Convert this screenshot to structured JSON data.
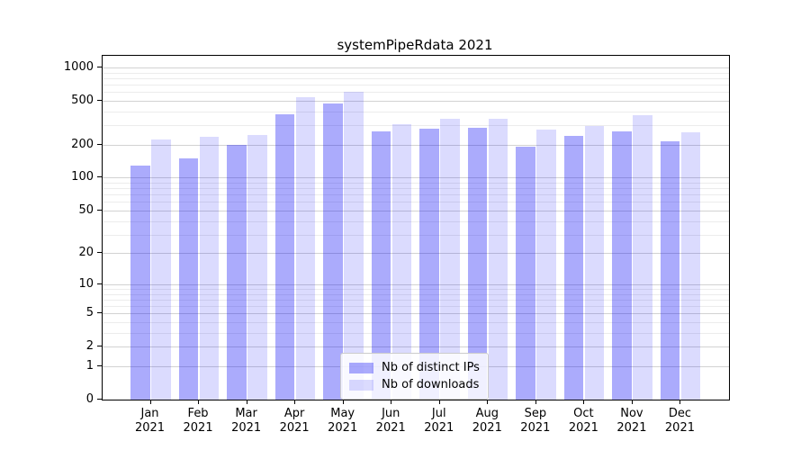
{
  "title": "systemPipeRdata 2021",
  "chart_data": {
    "type": "bar",
    "title": "systemPipeRdata 2021",
    "categories": [
      "Jan 2021",
      "Feb 2021",
      "Mar 2021",
      "Apr 2021",
      "May 2021",
      "Jun 2021",
      "Jul 2021",
      "Aug 2021",
      "Sep 2021",
      "Oct 2021",
      "Nov 2021",
      "Dec 2021"
    ],
    "series": [
      {
        "name": "Nb of distinct IPs",
        "color": "rgba(10,10,245,0.34)",
        "color_hex_on_white": "#abacf8",
        "values": [
          130,
          150,
          200,
          375,
          470,
          265,
          280,
          282,
          190,
          240,
          265,
          215
        ]
      },
      {
        "name": "Nb of downloads",
        "color": "rgba(10,10,245,0.145)",
        "color_hex_on_white": "#dcdcf9",
        "values": [
          222,
          237,
          243,
          535,
          605,
          305,
          345,
          342,
          272,
          297,
          368,
          258
        ]
      }
    ],
    "xlabel": "",
    "ylabel": "",
    "y_scale": "log1p",
    "y_ticks": [
      1000,
      500,
      200,
      100,
      50,
      20,
      10,
      5,
      2,
      1,
      0
    ],
    "y_minor_ticks": [
      3,
      4,
      6,
      7,
      8,
      9,
      30,
      40,
      60,
      70,
      80,
      90,
      300,
      400,
      600,
      700,
      800,
      900
    ],
    "ylim": [
      0,
      1275
    ],
    "grid": "horizontal major+minor",
    "legend": {
      "position": "lower-center",
      "entries": [
        "Nb of distinct IPs",
        "Nb of downloads"
      ]
    }
  }
}
